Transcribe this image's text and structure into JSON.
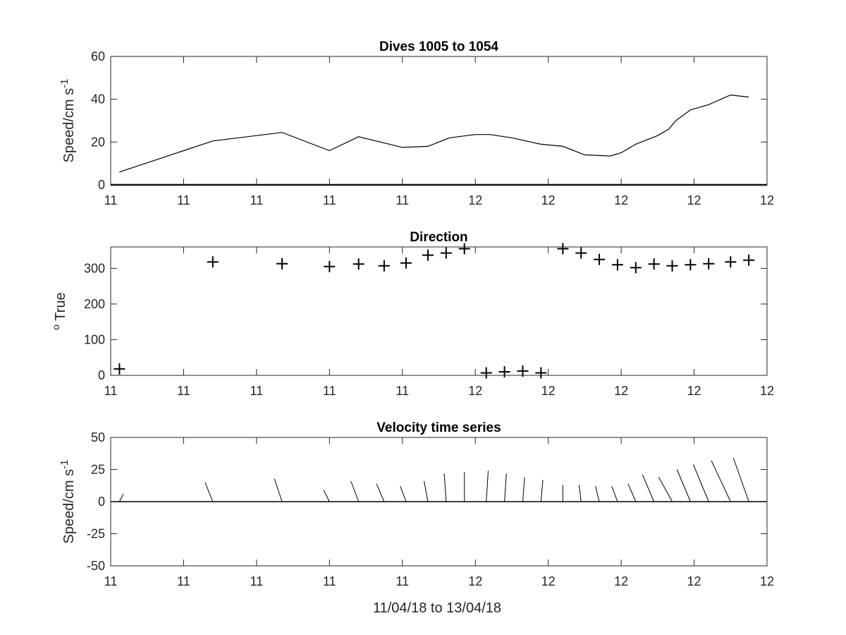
{
  "x_axis_label": "11/04/18 to 13/04/18",
  "chart_data": [
    {
      "type": "line",
      "title": "Dives 1005 to 1054",
      "ylabel": "Speed/cm s",
      "ylabel_superscript": "-1",
      "ylim": [
        0,
        60
      ],
      "yticks": [
        0,
        20,
        40,
        60
      ],
      "xticklabels": [
        "11",
        "11",
        "11",
        "11",
        "11",
        "12",
        "12",
        "12",
        "12",
        "12"
      ],
      "xlim": [
        0,
        9
      ],
      "x": [
        0.12,
        1.4,
        2.35,
        3.0,
        3.4,
        4.0,
        4.35,
        4.65,
        5.0,
        5.2,
        5.5,
        5.9,
        6.2,
        6.5,
        6.85,
        7.0,
        7.2,
        7.5,
        7.65,
        7.75,
        7.95,
        8.2,
        8.5,
        8.75
      ],
      "series": [
        {
          "values": [
            6,
            20.5,
            24.5,
            16,
            22.5,
            17.5,
            18,
            22,
            23.5,
            23.5,
            22,
            19,
            18,
            14,
            13.5,
            15,
            19,
            23,
            26,
            30,
            35,
            37.5,
            42,
            41
          ]
        }
      ],
      "zero_line": true
    },
    {
      "type": "scatter",
      "title": "Direction",
      "ylabel": "True",
      "ylabel_prefix": "o",
      "ylim": [
        0,
        360
      ],
      "yticks": [
        0,
        100,
        200,
        300
      ],
      "xticklabels": [
        "11",
        "11",
        "11",
        "11",
        "11",
        "12",
        "12",
        "12",
        "12",
        "12"
      ],
      "xlim": [
        0,
        9
      ],
      "marker": "+",
      "x": [
        0.12,
        1.4,
        2.35,
        3.0,
        3.4,
        3.75,
        4.05,
        4.35,
        4.6,
        4.85,
        5.15,
        5.4,
        5.65,
        5.9,
        6.2,
        6.45,
        6.7,
        6.95,
        7.2,
        7.45,
        7.7,
        7.95,
        8.2,
        8.5,
        8.75
      ],
      "y": [
        18,
        318,
        313,
        305,
        312,
        307,
        315,
        337,
        343,
        355,
        7,
        10,
        12,
        7,
        355,
        343,
        325,
        310,
        302,
        312,
        307,
        310,
        313,
        318,
        323
      ]
    },
    {
      "type": "stick",
      "title": "Velocity time series",
      "ylabel": "Speed/cm s",
      "ylabel_superscript": "-1",
      "ylim": [
        -50,
        50
      ],
      "yticks": [
        -50,
        -25,
        0,
        25,
        50
      ],
      "xticklabels": [
        "11",
        "11",
        "11",
        "11",
        "11",
        "12",
        "12",
        "12",
        "12",
        "12"
      ],
      "xlim": [
        0,
        9
      ],
      "zero_line": true,
      "sticks": [
        {
          "x": 0.12,
          "u": 2,
          "v": 6
        },
        {
          "x": 1.4,
          "u": -4,
          "v": 15
        },
        {
          "x": 2.35,
          "u": -4,
          "v": 18
        },
        {
          "x": 3.0,
          "u": -3,
          "v": 9
        },
        {
          "x": 3.4,
          "u": -4,
          "v": 16
        },
        {
          "x": 3.75,
          "u": -4,
          "v": 14
        },
        {
          "x": 4.05,
          "u": -3,
          "v": 12
        },
        {
          "x": 4.35,
          "u": -2,
          "v": 16
        },
        {
          "x": 4.6,
          "u": -1,
          "v": 22
        },
        {
          "x": 4.85,
          "u": 0,
          "v": 23
        },
        {
          "x": 5.15,
          "u": 1,
          "v": 24
        },
        {
          "x": 5.4,
          "u": 1,
          "v": 22
        },
        {
          "x": 5.65,
          "u": 1,
          "v": 19
        },
        {
          "x": 5.9,
          "u": 1,
          "v": 17
        },
        {
          "x": 6.2,
          "u": 0,
          "v": 13
        },
        {
          "x": 6.45,
          "u": -1,
          "v": 13
        },
        {
          "x": 6.7,
          "u": -2,
          "v": 12
        },
        {
          "x": 6.95,
          "u": -3,
          "v": 12
        },
        {
          "x": 7.2,
          "u": -4,
          "v": 14
        },
        {
          "x": 7.45,
          "u": -6,
          "v": 21
        },
        {
          "x": 7.7,
          "u": -7,
          "v": 19
        },
        {
          "x": 7.95,
          "u": -7,
          "v": 25
        },
        {
          "x": 8.2,
          "u": -8,
          "v": 29
        },
        {
          "x": 8.5,
          "u": -10,
          "v": 32
        },
        {
          "x": 8.75,
          "u": -8,
          "v": 34
        }
      ]
    }
  ]
}
